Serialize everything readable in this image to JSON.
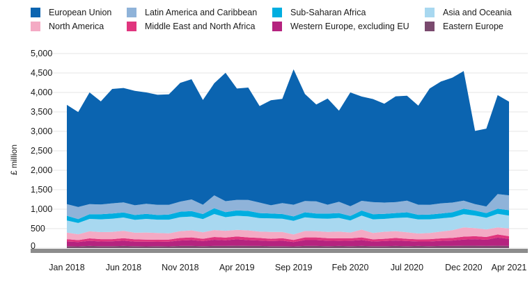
{
  "chart_data": {
    "type": "area",
    "stacked": true,
    "ylabel": "£ million",
    "xlabel": "",
    "ylim": [
      0,
      5000
    ],
    "yticks": [
      "5,000",
      "4,500",
      "4,000",
      "3,500",
      "3,000",
      "2,500",
      "2,000",
      "1,500",
      "1,000",
      "500",
      "0"
    ],
    "x_tick_labels": [
      "Jan 2018",
      "Jun 2018",
      "Nov 2018",
      "Apr 2019",
      "Sep 2019",
      "Feb 2020",
      "Jul 2020",
      "Dec 2020",
      "Apr 2021"
    ],
    "x": [
      "Jan 2018",
      "Feb 2018",
      "Mar 2018",
      "Apr 2018",
      "May 2018",
      "Jun 2018",
      "Jul 2018",
      "Aug 2018",
      "Sep 2018",
      "Oct 2018",
      "Nov 2018",
      "Dec 2018",
      "Jan 2019",
      "Feb 2019",
      "Mar 2019",
      "Apr 2019",
      "May 2019",
      "Jun 2019",
      "Jul 2019",
      "Aug 2019",
      "Sep 2019",
      "Oct 2019",
      "Nov 2019",
      "Dec 2019",
      "Jan 2020",
      "Feb 2020",
      "Mar 2020",
      "Apr 2020",
      "May 2020",
      "Jun 2020",
      "Jul 2020",
      "Aug 2020",
      "Sep 2020",
      "Oct 2020",
      "Nov 2020",
      "Dec 2020",
      "Jan 2021",
      "Feb 2021",
      "Mar 2021",
      "Apr 2021"
    ],
    "legend_position": "top",
    "series": [
      {
        "name": "Eastern Europe",
        "color": "#7a4a6e",
        "values": [
          50,
          45,
          55,
          50,
          50,
          55,
          50,
          45,
          50,
          45,
          55,
          55,
          50,
          55,
          55,
          60,
          55,
          55,
          50,
          50,
          45,
          55,
          55,
          50,
          55,
          50,
          55,
          50,
          50,
          55,
          50,
          55,
          50,
          55,
          55,
          60,
          60,
          55,
          60,
          55
        ]
      },
      {
        "name": "Western Europe, excluding EU",
        "color": "#b5237f",
        "values": [
          120,
          110,
          130,
          120,
          125,
          135,
          115,
          120,
          110,
          120,
          140,
          150,
          130,
          160,
          145,
          165,
          150,
          140,
          130,
          140,
          110,
          150,
          150,
          140,
          130,
          140,
          150,
          120,
          130,
          140,
          130,
          115,
          120,
          130,
          140,
          160,
          170,
          160,
          210,
          180
        ]
      },
      {
        "name": "Middle East and North Africa",
        "color": "#e0357e",
        "values": [
          60,
          50,
          65,
          60,
          55,
          65,
          60,
          55,
          55,
          55,
          65,
          70,
          60,
          70,
          70,
          75,
          70,
          65,
          60,
          65,
          55,
          70,
          70,
          65,
          65,
          60,
          70,
          55,
          60,
          65,
          60,
          55,
          60,
          65,
          65,
          75,
          75,
          70,
          80,
          70
        ]
      },
      {
        "name": "North America",
        "color": "#f4aac4",
        "values": [
          170,
          150,
          180,
          180,
          185,
          190,
          170,
          180,
          175,
          160,
          175,
          180,
          165,
          180,
          175,
          170,
          180,
          165,
          175,
          160,
          140,
          165,
          160,
          160,
          175,
          150,
          200,
          165,
          180,
          175,
          165,
          150,
          160,
          175,
          200,
          235,
          210,
          195,
          180,
          200
        ]
      },
      {
        "name": "Asia and Oceania",
        "color": "#a8d8f0",
        "values": [
          310,
          290,
          320,
          330,
          340,
          340,
          330,
          350,
          340,
          350,
          360,
          355,
          340,
          410,
          350,
          360,
          360,
          345,
          350,
          340,
          350,
          350,
          330,
          340,
          350,
          310,
          360,
          350,
          330,
          340,
          380,
          360,
          350,
          340,
          330,
          340,
          320,
          300,
          350,
          330
        ]
      },
      {
        "name": "Sub-Saharan Africa",
        "color": "#00aee0",
        "values": [
          120,
          100,
          120,
          130,
          135,
          130,
          125,
          130,
          120,
          130,
          140,
          140,
          130,
          150,
          130,
          140,
          140,
          130,
          125,
          120,
          115,
          130,
          125,
          130,
          125,
          115,
          130,
          130,
          130,
          125,
          135,
          120,
          120,
          125,
          130,
          140,
          130,
          120,
          130,
          140
        ]
      },
      {
        "name": "Latin America and Caribbean",
        "color": "#8fb3d9",
        "values": [
          300,
          310,
          260,
          250,
          260,
          260,
          250,
          260,
          260,
          250,
          260,
          300,
          240,
          330,
          280,
          270,
          280,
          270,
          210,
          280,
          300,
          290,
          310,
          230,
          290,
          250,
          250,
          310,
          290,
          280,
          300,
          260,
          250,
          260,
          250,
          210,
          165,
          170,
          380,
          380
        ]
      },
      {
        "name": "European Union",
        "color": "#0b64b0",
        "values": [
          2550,
          2440,
          2870,
          2650,
          2940,
          2940,
          2940,
          2860,
          2830,
          2840,
          3050,
          3090,
          2690,
          2880,
          3300,
          2860,
          2890,
          2480,
          2700,
          2680,
          3480,
          2750,
          2490,
          2730,
          2340,
          2925,
          2680,
          2650,
          2540,
          2720,
          2695,
          2545,
          2990,
          3130,
          3210,
          3330,
          1880,
          2000,
          2540,
          2410
        ]
      }
    ]
  }
}
